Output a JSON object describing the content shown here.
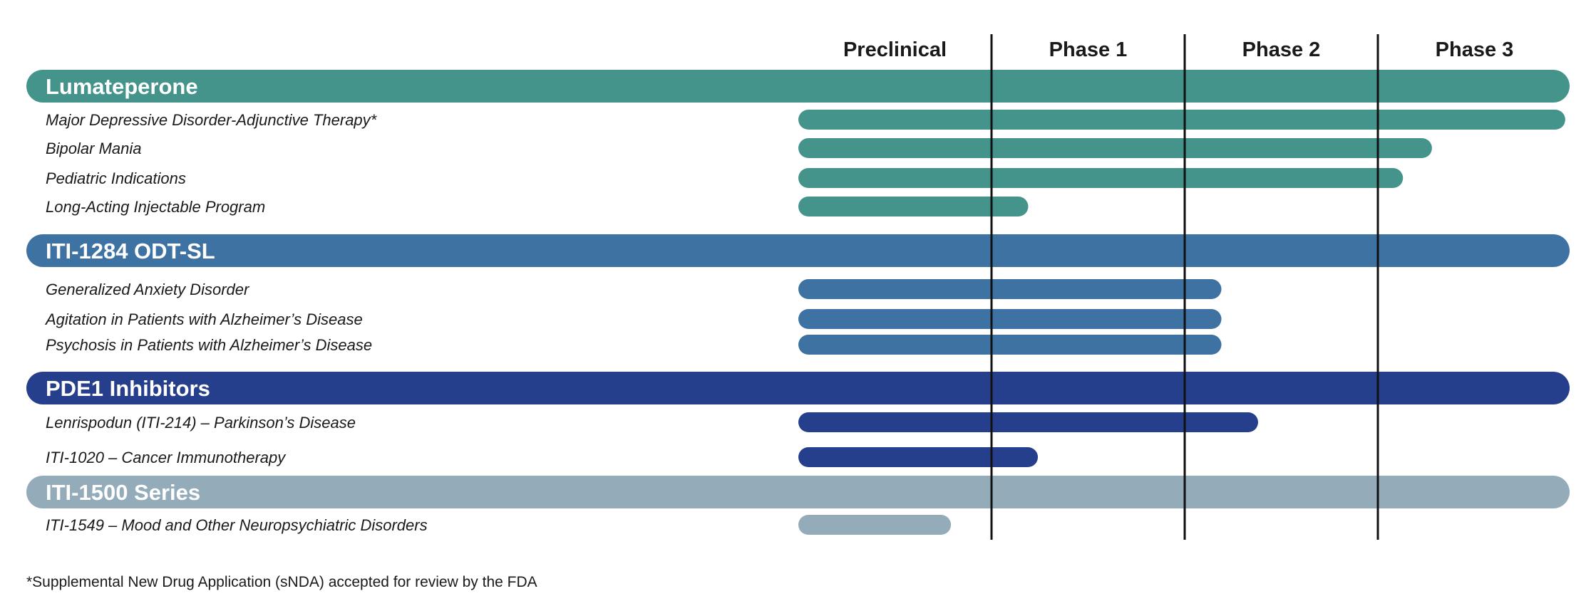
{
  "chart_data": {
    "type": "bar",
    "orientation": "horizontal",
    "phases": [
      "Preclinical",
      "Phase 1",
      "Phase 2",
      "Phase 3"
    ],
    "xlim": [
      0,
      4
    ],
    "grid": "vertical phase dividers",
    "groups": [
      {
        "name": "Lumateperone",
        "color": "#45948b",
        "programs": [
          {
            "label": "Major Depressive Disorder-Adjunctive Therapy*",
            "progress": 3.97
          },
          {
            "label": "Bipolar Mania",
            "progress": 3.28
          },
          {
            "label": "Pediatric Indications",
            "progress": 3.13
          },
          {
            "label": "Long-Acting Injectable Program",
            "progress": 1.19
          }
        ]
      },
      {
        "name": "ITI-1284 ODT-SL",
        "color": "#3e72a2",
        "programs": [
          {
            "label": "Generalized Anxiety Disorder",
            "progress": 2.19
          },
          {
            "label": "Agitation in Patients with Alzheimer’s Disease",
            "progress": 2.19
          },
          {
            "label": "Psychosis in Patients with Alzheimer’s Disease",
            "progress": 2.19
          }
        ]
      },
      {
        "name": "PDE1 Inhibitors",
        "color": "#263f8c",
        "programs": [
          {
            "label": "Lenrispodun (ITI-214) – Parkinson’s Disease",
            "progress": 2.38
          },
          {
            "label": "ITI-1020 – Cancer Immunotherapy",
            "progress": 1.24
          }
        ]
      },
      {
        "name": "ITI-1500 Series",
        "color": "#94abba",
        "programs": [
          {
            "label": "ITI-1549 – Mood and Other Neuropsychiatric Disorders",
            "progress": 0.79
          }
        ]
      }
    ]
  },
  "footnote": "*Supplemental New Drug Application (sNDA) accepted for review by the FDA"
}
